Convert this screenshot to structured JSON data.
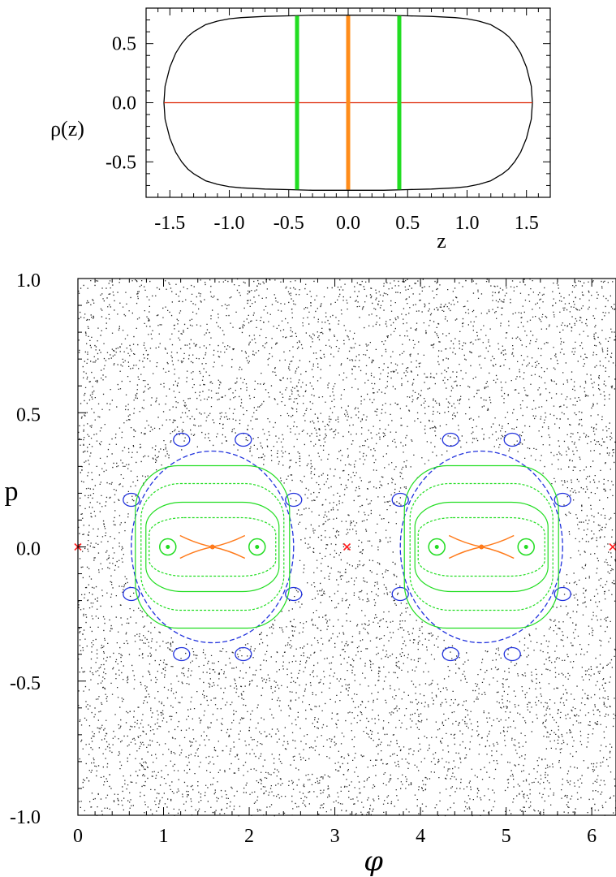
{
  "chart_data": [
    {
      "type": "line",
      "ylabel": "ρ(z)",
      "xlabel": "z",
      "xlim": [
        -1.7,
        1.7
      ],
      "ylim": [
        -0.8,
        0.8
      ],
      "x_ticks": [
        -1.5,
        -1.0,
        -0.5,
        0.0,
        0.5,
        1.0,
        1.5
      ],
      "x_tick_labels": [
        "-1.5",
        "-1.0",
        "-0.5",
        "0.0",
        "0.5",
        "1.0",
        "1.5"
      ],
      "y_ticks": [
        -0.5,
        0.0,
        0.5
      ],
      "y_tick_labels": [
        "-0.5",
        "0.0",
        "0.5"
      ],
      "series": [
        {
          "color": "#000000",
          "x": [
            -1.55,
            -1.54,
            -1.5,
            -1.45,
            -1.4,
            -1.35,
            -1.3,
            -1.2,
            -1.1,
            -1.0,
            -0.9,
            -0.7,
            -0.5,
            -0.3,
            -0.1,
            0.0,
            0.1,
            0.3,
            0.5,
            0.7,
            0.9,
            1.0,
            1.1,
            1.2,
            1.3,
            1.35,
            1.4,
            1.45,
            1.5,
            1.54,
            1.55
          ],
          "values": [
            0.0,
            0.14,
            0.3,
            0.42,
            0.5,
            0.56,
            0.6,
            0.66,
            0.69,
            0.71,
            0.72,
            0.73,
            0.735,
            0.74,
            0.74,
            0.74,
            0.74,
            0.74,
            0.735,
            0.73,
            0.72,
            0.71,
            0.69,
            0.66,
            0.6,
            0.56,
            0.5,
            0.42,
            0.3,
            0.14,
            0.0
          ]
        },
        {
          "color": "#dd2200",
          "x": [
            -1.55,
            1.55
          ],
          "values": [
            0.0,
            0.0
          ]
        }
      ],
      "vertical_lines": [
        {
          "x": -0.43,
          "color": "#22dd22"
        },
        {
          "x": 0.0,
          "color": "#ff8c1a"
        },
        {
          "x": 0.43,
          "color": "#22dd22"
        }
      ]
    },
    {
      "type": "scatter",
      "xlabel": "φ",
      "ylabel": "p",
      "xlim": [
        0,
        6.283
      ],
      "ylim": [
        -1.0,
        1.0
      ],
      "x_ticks": [
        0,
        1,
        2,
        3,
        4,
        5,
        6
      ],
      "x_tick_labels": [
        "0",
        "1",
        "2",
        "3",
        "4",
        "5",
        "6"
      ],
      "y_ticks": [
        -1.0,
        -0.5,
        0.0,
        0.5,
        1.0
      ],
      "y_tick_labels": [
        "-1.0",
        "-0.5",
        "0.0",
        "0.5",
        "1.0"
      ],
      "chaotic_sea_color": "#000000",
      "island_centers": [
        1.571,
        4.712
      ],
      "hyperbolic_points": [
        {
          "x": 0.0,
          "y": 0.0,
          "color": "#ff2020",
          "marker": "x"
        },
        {
          "x": 3.1416,
          "y": 0.0,
          "color": "#ff2020",
          "marker": "x"
        },
        {
          "x": 6.2832,
          "y": 0.0,
          "color": "#ff2020",
          "marker": "x"
        }
      ],
      "elliptic_points": [
        {
          "x": 1.06,
          "y": 0.0,
          "color": "#22dd22"
        },
        {
          "x": 2.09,
          "y": 0.0,
          "color": "#22dd22"
        },
        {
          "x": 4.2,
          "y": 0.0,
          "color": "#22dd22"
        },
        {
          "x": 5.23,
          "y": 0.0,
          "color": "#22dd22"
        },
        {
          "x": 1.571,
          "y": 0.0,
          "color": "#ff7a1a"
        },
        {
          "x": 4.712,
          "y": 0.0,
          "color": "#ff7a1a"
        }
      ],
      "curve_colors": {
        "inner": "#ff7a1a",
        "middle": "#22dd22",
        "outer": "#2233dd"
      }
    }
  ]
}
